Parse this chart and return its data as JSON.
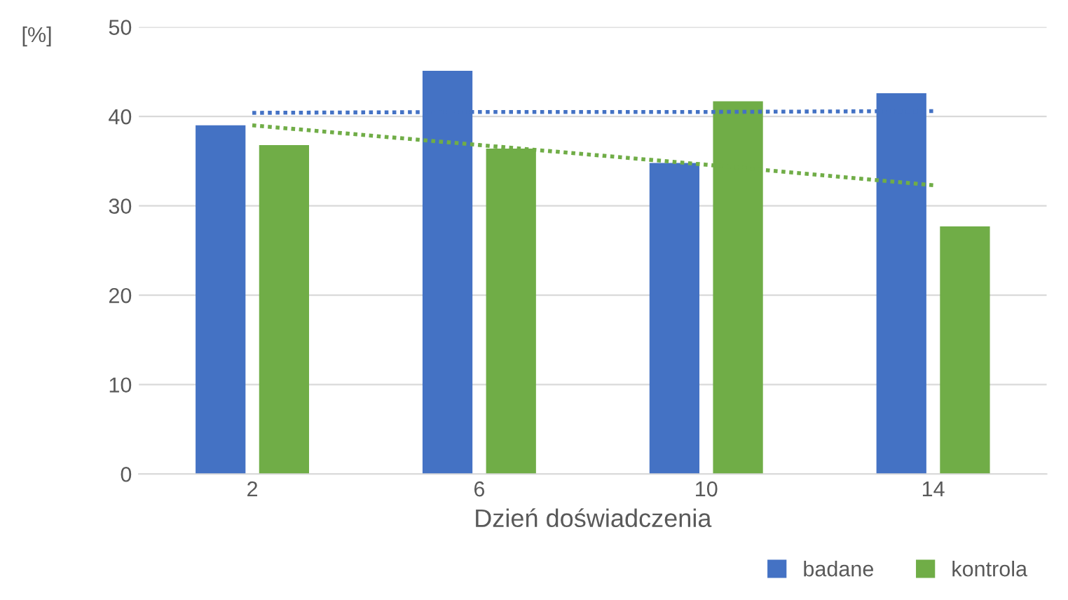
{
  "chart_data": {
    "type": "bar",
    "xlabel": "Dzień doświadczenia",
    "ylabel": "[%]",
    "categories": [
      "2",
      "6",
      "10",
      "14"
    ],
    "series": [
      {
        "name": "badane",
        "color": "#4472c4",
        "values": [
          39.0,
          45.1,
          34.8,
          42.6
        ]
      },
      {
        "name": "kontrola",
        "color": "#70ad47",
        "values": [
          36.8,
          36.4,
          41.7,
          27.7
        ]
      },
      {
        "type": "line",
        "color": "#4472c4",
        "line_style": "dotted",
        "values": [
          40.4,
          40.5,
          40.5,
          40.6
        ]
      },
      {
        "type": "line",
        "color": "#70ad47",
        "line_style": "dotted",
        "values": [
          39.0,
          36.8,
          34.6,
          32.3
        ]
      }
    ],
    "ylim": [
      0,
      50
    ],
    "yticks": [
      0,
      10,
      20,
      30,
      40,
      50
    ],
    "grid": "y",
    "legend": "bottom right"
  }
}
